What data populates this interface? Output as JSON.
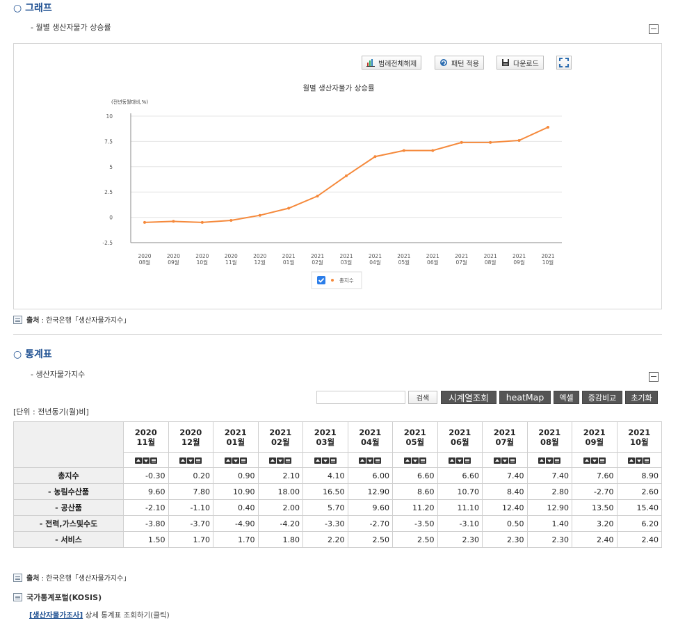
{
  "graph_section": {
    "title": "○ 그래프",
    "subtitle": "- 월별 생산자물가 상승률",
    "toolbar": {
      "legend_toggle": "범례전체해제",
      "pattern": "패턴 적용",
      "download": "다운로드"
    },
    "source_label": "출처",
    "source_text": " : 한국은행「생산자물가지수」"
  },
  "chart_data": {
    "type": "line",
    "title": "월별 생산자물가 상승률",
    "ylabel": "(전년동월대비,%)",
    "xlabel": "",
    "categories": [
      "2020 08월",
      "2020 09월",
      "2020 10월",
      "2020 11월",
      "2020 12월",
      "2021 01월",
      "2021 02월",
      "2021 03월",
      "2021 04월",
      "2021 05월",
      "2021 06월",
      "2021 07월",
      "2021 08월",
      "2021 09월",
      "2021 10월"
    ],
    "x_tick_years": [
      "2020",
      "2020",
      "2020",
      "2020",
      "2020",
      "2021",
      "2021",
      "2021",
      "2021",
      "2021",
      "2021",
      "2021",
      "2021",
      "2021",
      "2021"
    ],
    "x_tick_months": [
      "08월",
      "09월",
      "10월",
      "11월",
      "12월",
      "01월",
      "02월",
      "03월",
      "04월",
      "05월",
      "06월",
      "07월",
      "08월",
      "09월",
      "10월"
    ],
    "y_ticks": [
      "10",
      "7.5",
      "5",
      "2.5",
      "0",
      "-2.5"
    ],
    "ylim": [
      -2.5,
      10
    ],
    "series": [
      {
        "name": "총지수",
        "color": "#f5893b",
        "values": [
          -0.5,
          -0.4,
          -0.5,
          -0.3,
          0.2,
          0.9,
          2.1,
          4.1,
          6.0,
          6.6,
          6.6,
          7.4,
          7.4,
          7.6,
          8.9
        ]
      }
    ],
    "grid": true,
    "legend_position": "bottom"
  },
  "stats_section": {
    "title": "○ 통계표",
    "subtitle": "- 생산자물가지수",
    "search_placeholder": "",
    "buttons": {
      "search": "검색",
      "timeseries": "시계열조회",
      "heatmap": "heatMap",
      "excel": "엑셀",
      "compare": "증감비교",
      "reset": "초기화"
    },
    "unit": "[단위 : 전년동기(월)비]",
    "columns": [
      {
        "year": "2020",
        "month": "11월"
      },
      {
        "year": "2020",
        "month": "12월"
      },
      {
        "year": "2021",
        "month": "01월"
      },
      {
        "year": "2021",
        "month": "02월"
      },
      {
        "year": "2021",
        "month": "03월"
      },
      {
        "year": "2021",
        "month": "04월"
      },
      {
        "year": "2021",
        "month": "05월"
      },
      {
        "year": "2021",
        "month": "06월"
      },
      {
        "year": "2021",
        "month": "07월"
      },
      {
        "year": "2021",
        "month": "08월"
      },
      {
        "year": "2021",
        "month": "09월"
      },
      {
        "year": "2021",
        "month": "10월"
      }
    ],
    "rows": [
      {
        "label": "총지수",
        "values": [
          "-0.30",
          "0.20",
          "0.90",
          "2.10",
          "4.10",
          "6.00",
          "6.60",
          "6.60",
          "7.40",
          "7.40",
          "7.60",
          "8.90"
        ]
      },
      {
        "label": "- 농림수산품",
        "values": [
          "9.60",
          "7.80",
          "10.90",
          "18.00",
          "16.50",
          "12.90",
          "8.60",
          "10.70",
          "8.40",
          "2.80",
          "-2.70",
          "2.60"
        ]
      },
      {
        "label": "- 공산품",
        "values": [
          "-2.10",
          "-1.10",
          "0.40",
          "2.00",
          "5.70",
          "9.60",
          "11.20",
          "11.10",
          "12.40",
          "12.90",
          "13.50",
          "15.40"
        ]
      },
      {
        "label": "- 전력,가스및수도",
        "values": [
          "-3.80",
          "-3.70",
          "-4.90",
          "-4.20",
          "-3.30",
          "-2.70",
          "-3.50",
          "-3.10",
          "0.50",
          "1.40",
          "3.20",
          "6.20"
        ]
      },
      {
        "label": "- 서비스",
        "values": [
          "1.50",
          "1.70",
          "1.70",
          "1.80",
          "2.20",
          "2.50",
          "2.50",
          "2.30",
          "2.30",
          "2.30",
          "2.40",
          "2.40"
        ]
      }
    ],
    "source_label": "출처",
    "source_text": " : 한국은행「생산자물가지수」",
    "kosis_label": "국가통계포털(KOSIS)",
    "kosis_link": "[생산자물가조사]",
    "kosis_desc": " 상세 통계표 조회하기(클릭)"
  }
}
